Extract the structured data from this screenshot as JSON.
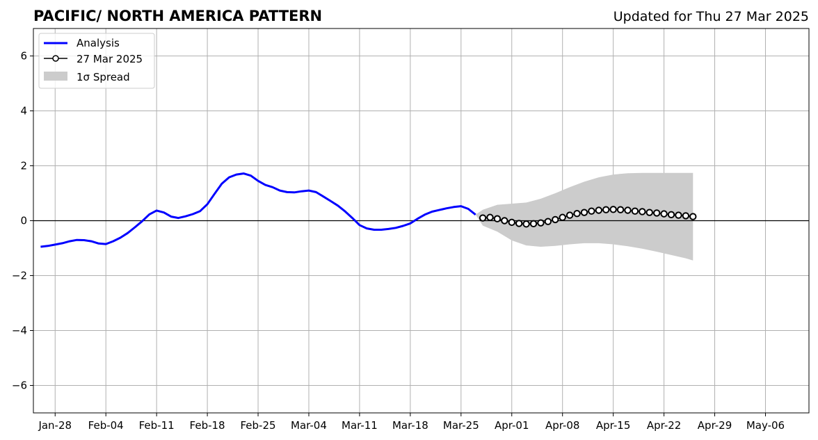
{
  "chart_data": {
    "type": "line",
    "title": "PACIFIC/ NORTH AMERICA PATTERN",
    "subtitle": "Updated for Thu 27 Mar 2025",
    "x_type": "date",
    "xlim": [
      "2025-01-25",
      "2025-05-12"
    ],
    "ylim": [
      -7,
      7
    ],
    "x_ticks": [
      "2025-01-28",
      "2025-02-04",
      "2025-02-11",
      "2025-02-18",
      "2025-02-25",
      "2025-03-04",
      "2025-03-11",
      "2025-03-18",
      "2025-03-25",
      "2025-04-01",
      "2025-04-08",
      "2025-04-15",
      "2025-04-22",
      "2025-04-29",
      "2025-05-06"
    ],
    "x_tick_labels": [
      "Jan-28",
      "Feb-04",
      "Feb-11",
      "Feb-18",
      "Feb-25",
      "Mar-04",
      "Mar-11",
      "Mar-18",
      "Mar-25",
      "Apr-01",
      "Apr-08",
      "Apr-15",
      "Apr-22",
      "Apr-29",
      "May-06"
    ],
    "y_ticks": [
      6,
      4,
      2,
      0,
      -2,
      -4,
      -6
    ],
    "y_tick_labels": [
      "6",
      "4",
      "2",
      "0",
      "−2",
      "−4",
      "−6"
    ],
    "grid": true,
    "zero_line": true,
    "legend_position": "top-left",
    "series": [
      {
        "name": "Analysis",
        "kind": "line",
        "color": "#0000ff",
        "x": [
          "2025-01-26",
          "2025-01-27",
          "2025-01-28",
          "2025-01-29",
          "2025-01-30",
          "2025-01-31",
          "2025-02-01",
          "2025-02-02",
          "2025-02-03",
          "2025-02-04",
          "2025-02-05",
          "2025-02-06",
          "2025-02-07",
          "2025-02-08",
          "2025-02-09",
          "2025-02-10",
          "2025-02-11",
          "2025-02-12",
          "2025-02-13",
          "2025-02-14",
          "2025-02-15",
          "2025-02-16",
          "2025-02-17",
          "2025-02-18",
          "2025-02-19",
          "2025-02-20",
          "2025-02-21",
          "2025-02-22",
          "2025-02-23",
          "2025-02-24",
          "2025-02-25",
          "2025-02-26",
          "2025-02-27",
          "2025-02-28",
          "2025-03-01",
          "2025-03-02",
          "2025-03-03",
          "2025-03-04",
          "2025-03-05",
          "2025-03-06",
          "2025-03-07",
          "2025-03-08",
          "2025-03-09",
          "2025-03-10",
          "2025-03-11",
          "2025-03-12",
          "2025-03-13",
          "2025-03-14",
          "2025-03-15",
          "2025-03-16",
          "2025-03-17",
          "2025-03-18",
          "2025-03-19",
          "2025-03-20",
          "2025-03-21",
          "2025-03-22",
          "2025-03-23",
          "2025-03-24",
          "2025-03-25",
          "2025-03-26",
          "2025-03-27"
        ],
        "y": [
          -0.95,
          -0.92,
          -0.87,
          -0.82,
          -0.75,
          -0.7,
          -0.71,
          -0.75,
          -0.83,
          -0.85,
          -0.75,
          -0.62,
          -0.45,
          -0.24,
          -0.02,
          0.23,
          0.37,
          0.3,
          0.15,
          0.1,
          0.16,
          0.24,
          0.35,
          0.6,
          0.98,
          1.35,
          1.58,
          1.68,
          1.72,
          1.64,
          1.45,
          1.3,
          1.22,
          1.1,
          1.04,
          1.03,
          1.07,
          1.1,
          1.04,
          0.88,
          0.72,
          0.55,
          0.34,
          0.1,
          -0.16,
          -0.28,
          -0.33,
          -0.33,
          -0.3,
          -0.26,
          -0.19,
          -0.1,
          0.07,
          0.22,
          0.33,
          0.39,
          0.45,
          0.5,
          0.53,
          0.43,
          0.22
        ]
      },
      {
        "name": "27 Mar 2025",
        "kind": "line-markers",
        "color": "#000000",
        "x": [
          "2025-03-28",
          "2025-03-29",
          "2025-03-30",
          "2025-03-31",
          "2025-04-01",
          "2025-04-02",
          "2025-04-03",
          "2025-04-04",
          "2025-04-05",
          "2025-04-06",
          "2025-04-07",
          "2025-04-08",
          "2025-04-09",
          "2025-04-10",
          "2025-04-11",
          "2025-04-12",
          "2025-04-13",
          "2025-04-14",
          "2025-04-15",
          "2025-04-16",
          "2025-04-17",
          "2025-04-18",
          "2025-04-19",
          "2025-04-20",
          "2025-04-21",
          "2025-04-22",
          "2025-04-23",
          "2025-04-24",
          "2025-04-25",
          "2025-04-26"
        ],
        "y": [
          0.1,
          0.12,
          0.07,
          0.0,
          -0.06,
          -0.1,
          -0.12,
          -0.11,
          -0.08,
          -0.03,
          0.04,
          0.12,
          0.2,
          0.26,
          0.3,
          0.35,
          0.38,
          0.4,
          0.41,
          0.4,
          0.38,
          0.35,
          0.33,
          0.3,
          0.28,
          0.25,
          0.22,
          0.2,
          0.18,
          0.15
        ]
      }
    ],
    "spread": {
      "name": "1σ Spread",
      "color": "#cccccc",
      "x": [
        "2025-03-27",
        "2025-03-28",
        "2025-03-30",
        "2025-04-01",
        "2025-04-03",
        "2025-04-05",
        "2025-04-07",
        "2025-04-09",
        "2025-04-11",
        "2025-04-13",
        "2025-04-15",
        "2025-04-17",
        "2025-04-19",
        "2025-04-21",
        "2025-04-23",
        "2025-04-25",
        "2025-04-26"
      ],
      "upper": [
        0.22,
        0.4,
        0.58,
        0.62,
        0.66,
        0.8,
        1.0,
        1.22,
        1.42,
        1.58,
        1.68,
        1.73,
        1.74,
        1.74,
        1.74,
        1.74,
        1.74
      ],
      "lower": [
        0.22,
        -0.18,
        -0.4,
        -0.72,
        -0.9,
        -0.95,
        -0.92,
        -0.86,
        -0.82,
        -0.82,
        -0.86,
        -0.93,
        -1.02,
        -1.13,
        -1.25,
        -1.37,
        -1.45
      ]
    }
  },
  "legend": {
    "analysis_label": "Analysis",
    "forecast_label": "27 Mar 2025",
    "spread_label": "1σ Spread"
  }
}
